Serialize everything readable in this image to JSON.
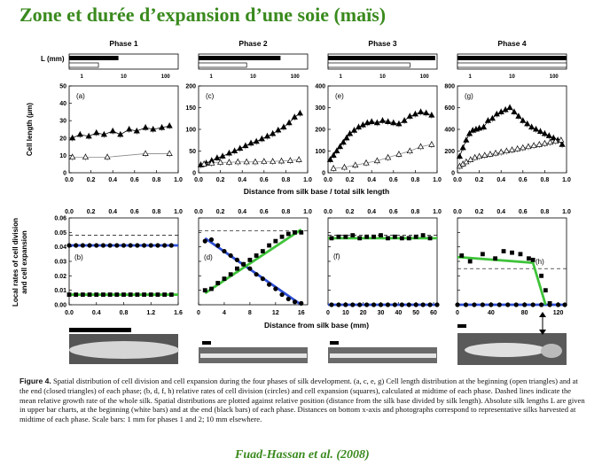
{
  "title": "Zone et durée d’expansion d’une soie (maïs)",
  "citation": "Fuad-Hassan et al. (2008)",
  "caption": {
    "label": "Figure 4.",
    "text": "Spatial distribution of cell division and cell expansion during the four phases of silk development. (a, c, e, g) Cell length distribution at the beginning (open triangles) and at the end (closed triangles) of each phase; (b, d, f, h) relative rates of cell division (circles) and cell expansion (squares), calculated at midtime of each phase. Dashed lines indicate the mean relative growth rate of the whole silk. Spatial distributions are plotted against relative position (distance from the silk base divided by silk length). Absolute silk lengths L are given in upper bar charts, at the beginning (white bars) and at the end (black bars) of each phase. Distances on bottom x-axis and photographs correspond to representative silks harvested at midtime of each phase. Scale bars: 1 mm for phases 1 and 2; 10 mm elsewhere."
  },
  "figure": {
    "phases": [
      "Phase 1",
      "Phase 2",
      "Phase 3",
      "Phase 4"
    ],
    "L_label": "L (mm)",
    "L_ticks": [
      "1",
      "10",
      "100"
    ],
    "L_bars": [
      {
        "begin_mm": 2.5,
        "end_mm": 7.5
      },
      {
        "begin_mm": 7,
        "end_mm": 45
      },
      {
        "begin_mm": 45,
        "end_mm": 180
      },
      {
        "begin_mm": 200,
        "end_mm": 200
      }
    ],
    "top_ylabel": "Cell length (µm)",
    "top_xlabel": "Distance from silk base / total silk length",
    "mid_xticks": [
      "0.0",
      "0.2",
      "0.4",
      "0.6",
      "0.8",
      "1.0"
    ],
    "bottom_ylabel_1": "Local rates of cell division",
    "bottom_ylabel_2": "and cell expansion",
    "bottom_xlabel": "Distance from silk base (mm)"
  },
  "chart_data": [
    {
      "panel": "a",
      "type": "line",
      "ylim": [
        0,
        50
      ],
      "yticks": [
        0,
        10,
        20,
        30,
        40,
        50
      ],
      "xlim": [
        0,
        1
      ],
      "xticks": [
        "0.0",
        "0.2",
        "0.4",
        "0.6",
        "0.8",
        "1.0"
      ],
      "series": [
        {
          "marker": "closed-triangle",
          "x": [
            0.03,
            0.1,
            0.18,
            0.25,
            0.32,
            0.4,
            0.47,
            0.55,
            0.62,
            0.7,
            0.77,
            0.85,
            0.92
          ],
          "y": [
            20,
            22,
            21,
            23,
            22,
            24,
            22,
            25,
            24,
            26,
            25,
            26,
            27
          ]
        },
        {
          "marker": "open-triangle",
          "x": [
            0.03,
            0.15,
            0.35,
            0.7,
            0.92
          ],
          "y": [
            9,
            9,
            9,
            11,
            11
          ]
        }
      ]
    },
    {
      "panel": "c",
      "type": "line",
      "ylim": [
        0,
        200
      ],
      "yticks": [
        0,
        50,
        100,
        150,
        200
      ],
      "xlim": [
        0,
        1
      ],
      "xticks": [
        "0.0",
        "0.2",
        "0.4",
        "0.6",
        "0.8",
        "1.0"
      ],
      "series": [
        {
          "marker": "closed-triangle",
          "x": [
            0.02,
            0.07,
            0.12,
            0.17,
            0.22,
            0.28,
            0.33,
            0.38,
            0.43,
            0.48,
            0.53,
            0.58,
            0.63,
            0.68,
            0.73,
            0.78,
            0.83,
            0.88,
            0.93
          ],
          "y": [
            18,
            22,
            28,
            34,
            38,
            45,
            50,
            56,
            62,
            68,
            72,
            78,
            84,
            90,
            98,
            105,
            115,
            128,
            137
          ]
        },
        {
          "marker": "open-triangle",
          "x": [
            0.05,
            0.12,
            0.2,
            0.28,
            0.36,
            0.44,
            0.52,
            0.6,
            0.68,
            0.76,
            0.84,
            0.92
          ],
          "y": [
            20,
            22,
            24,
            24,
            25,
            25,
            25,
            26,
            26,
            27,
            28,
            30
          ]
        }
      ]
    },
    {
      "panel": "e",
      "type": "line",
      "ylim": [
        0,
        400
      ],
      "yticks": [
        0,
        100,
        200,
        300,
        400
      ],
      "xlim": [
        0,
        1
      ],
      "xticks": [
        "0.0",
        "0.2",
        "0.4",
        "0.6",
        "0.8",
        "1.0"
      ],
      "series": [
        {
          "marker": "closed-triangle",
          "x": [
            0.02,
            0.05,
            0.08,
            0.11,
            0.14,
            0.17,
            0.2,
            0.24,
            0.28,
            0.32,
            0.36,
            0.4,
            0.45,
            0.5,
            0.55,
            0.6,
            0.65,
            0.7,
            0.75,
            0.8,
            0.85,
            0.9,
            0.95
          ],
          "y": [
            60,
            80,
            100,
            120,
            140,
            160,
            180,
            195,
            210,
            220,
            230,
            235,
            230,
            240,
            235,
            230,
            225,
            240,
            260,
            270,
            280,
            275,
            265
          ]
        },
        {
          "marker": "open-triangle",
          "x": [
            0.05,
            0.15,
            0.25,
            0.35,
            0.45,
            0.55,
            0.65,
            0.75,
            0.85,
            0.95
          ],
          "y": [
            20,
            25,
            35,
            45,
            55,
            70,
            85,
            100,
            120,
            130
          ]
        }
      ]
    },
    {
      "panel": "g",
      "type": "line",
      "ylim": [
        0,
        800
      ],
      "yticks": [
        0,
        200,
        400,
        600,
        800
      ],
      "xlim": [
        0,
        1
      ],
      "xticks": [
        "0.0",
        "0.2",
        "0.4",
        "0.6",
        "0.8",
        "1.0"
      ],
      "series": [
        {
          "marker": "closed-triangle",
          "x": [
            0.02,
            0.05,
            0.08,
            0.11,
            0.14,
            0.17,
            0.2,
            0.24,
            0.28,
            0.32,
            0.36,
            0.4,
            0.44,
            0.48,
            0.52,
            0.56,
            0.6,
            0.64,
            0.68,
            0.72,
            0.76,
            0.8,
            0.84,
            0.88,
            0.92,
            0.96
          ],
          "y": [
            150,
            230,
            300,
            360,
            390,
            400,
            410,
            420,
            480,
            500,
            540,
            560,
            580,
            600,
            560,
            520,
            480,
            450,
            420,
            400,
            380,
            360,
            340,
            320,
            300,
            260
          ]
        },
        {
          "marker": "open-triangle",
          "x": [
            0.02,
            0.05,
            0.08,
            0.12,
            0.16,
            0.2,
            0.25,
            0.3,
            0.35,
            0.4,
            0.45,
            0.5,
            0.55,
            0.6,
            0.65,
            0.7,
            0.75,
            0.8,
            0.85,
            0.9,
            0.95
          ],
          "y": [
            60,
            80,
            100,
            120,
            140,
            150,
            160,
            170,
            180,
            190,
            200,
            210,
            220,
            230,
            240,
            250,
            260,
            270,
            280,
            290,
            300
          ]
        }
      ]
    },
    {
      "panel": "b",
      "type": "line",
      "ylim": [
        0,
        0.06
      ],
      "yticks": [
        "0.00",
        "0.01",
        "0.02",
        "0.03",
        "0.04",
        "0.05",
        "0.06"
      ],
      "xlim": [
        0,
        1.6
      ],
      "xticks": [
        "0.0",
        "0.4",
        "0.8",
        "1.2",
        "1.6"
      ],
      "dashed_mean": 0.048,
      "division": {
        "x": [
          0,
          0.1,
          0.2,
          0.3,
          0.4,
          0.5,
          0.6,
          0.7,
          0.8,
          0.9,
          1.0,
          1.1,
          1.2,
          1.3,
          1.4,
          1.5
        ],
        "y": [
          0.041,
          0.041,
          0.041,
          0.041,
          0.041,
          0.041,
          0.041,
          0.041,
          0.041,
          0.041,
          0.041,
          0.041,
          0.041,
          0.041,
          0.041,
          0.041
        ],
        "fit": [
          [
            0,
            0.041
          ],
          [
            1.6,
            0.041
          ]
        ]
      },
      "expansion": {
        "x": [
          0,
          0.1,
          0.2,
          0.3,
          0.4,
          0.5,
          0.6,
          0.7,
          0.8,
          0.9,
          1.0,
          1.1,
          1.2,
          1.3,
          1.4,
          1.5
        ],
        "y": [
          0.007,
          0.007,
          0.007,
          0.007,
          0.007,
          0.007,
          0.007,
          0.007,
          0.007,
          0.007,
          0.007,
          0.007,
          0.007,
          0.007,
          0.007,
          0.007
        ],
        "fit": [
          [
            0,
            0.007
          ],
          [
            1.6,
            0.007
          ]
        ]
      }
    },
    {
      "panel": "d",
      "type": "line",
      "ylim": [
        0,
        0.06
      ],
      "yticks": [
        "0.00",
        "0.01",
        "0.02",
        "0.03",
        "0.04",
        "0.05",
        "0.06"
      ],
      "xlim": [
        0,
        17
      ],
      "xticks": [
        "0",
        "4",
        "8",
        "12",
        "16"
      ],
      "dashed_mean": 0.051,
      "division": {
        "x": [
          1,
          2,
          3,
          4,
          5,
          6,
          7,
          8,
          9,
          10,
          11,
          12,
          13,
          14,
          15,
          16
        ],
        "y": [
          0.044,
          0.045,
          0.041,
          0.037,
          0.034,
          0.031,
          0.028,
          0.025,
          0.021,
          0.018,
          0.014,
          0.011,
          0.007,
          0.004,
          0.002,
          0.001
        ],
        "fit": [
          [
            1,
            0.046
          ],
          [
            16,
            0
          ]
        ]
      },
      "expansion": {
        "x": [
          1,
          2,
          3,
          4,
          5,
          6,
          7,
          8,
          9,
          10,
          11,
          12,
          13,
          14,
          15,
          16
        ],
        "y": [
          0.01,
          0.011,
          0.015,
          0.018,
          0.021,
          0.025,
          0.028,
          0.031,
          0.034,
          0.037,
          0.041,
          0.044,
          0.047,
          0.049,
          0.05,
          0.05
        ],
        "fit": [
          [
            1,
            0.008
          ],
          [
            16,
            0.052
          ]
        ]
      }
    },
    {
      "panel": "f",
      "type": "line",
      "ylim": [
        0,
        0.06
      ],
      "yticks": [
        "0.00",
        "0.01",
        "0.02",
        "0.03",
        "0.04",
        "0.05",
        "0.06"
      ],
      "xlim": [
        0,
        62
      ],
      "xticks": [
        "0",
        "10",
        "20",
        "30",
        "40",
        "50",
        "60"
      ],
      "dashed_mean": 0.048,
      "division": {
        "x": [
          2,
          6,
          10,
          14,
          18,
          22,
          26,
          30,
          34,
          38,
          42,
          46,
          50,
          54,
          58,
          62
        ],
        "y": [
          0,
          0,
          0,
          0,
          0,
          0,
          0,
          0,
          0,
          0,
          0,
          0,
          0,
          0,
          0,
          0
        ],
        "fit": [
          [
            0,
            0
          ],
          [
            62,
            0
          ]
        ]
      },
      "expansion": {
        "x": [
          2,
          6,
          10,
          14,
          18,
          22,
          26,
          30,
          34,
          38,
          42,
          46,
          50,
          54,
          58
        ],
        "y": [
          0.046,
          0.047,
          0.047,
          0.048,
          0.046,
          0.047,
          0.047,
          0.048,
          0.046,
          0.047,
          0.046,
          0.046,
          0.047,
          0.048,
          0.046
        ],
        "fit": [
          [
            0,
            0.046
          ],
          [
            62,
            0.046
          ]
        ]
      }
    },
    {
      "panel": "h",
      "type": "line",
      "ylim": [
        0,
        0.06
      ],
      "yticks": [
        "0.00",
        "0.01",
        "0.02",
        "0.03",
        "0.04",
        "0.05",
        "0.06"
      ],
      "xlim": [
        0,
        130
      ],
      "xticks": [
        "0",
        "40",
        "80",
        "120"
      ],
      "dashed_mean": 0.025,
      "division": {
        "x": [
          0,
          10,
          20,
          30,
          40,
          50,
          60,
          70,
          80,
          90,
          100,
          110,
          120,
          128
        ],
        "y": [
          0,
          0,
          0,
          0,
          0,
          0,
          0,
          0,
          0,
          0,
          0,
          0,
          0,
          0
        ],
        "fit": [
          [
            0,
            0
          ],
          [
            130,
            0
          ]
        ]
      },
      "expansion": {
        "x": [
          5,
          15,
          30,
          45,
          55,
          65,
          75,
          85,
          90,
          100,
          105,
          110
        ],
        "y": [
          0.034,
          0.03,
          0.035,
          0.032,
          0.037,
          0.036,
          0.035,
          0.032,
          0.031,
          0.02,
          0.01,
          0.001
        ],
        "fit": [
          [
            0,
            0.033
          ],
          [
            90,
            0.029
          ],
          [
            105,
            0
          ]
        ]
      }
    }
  ]
}
